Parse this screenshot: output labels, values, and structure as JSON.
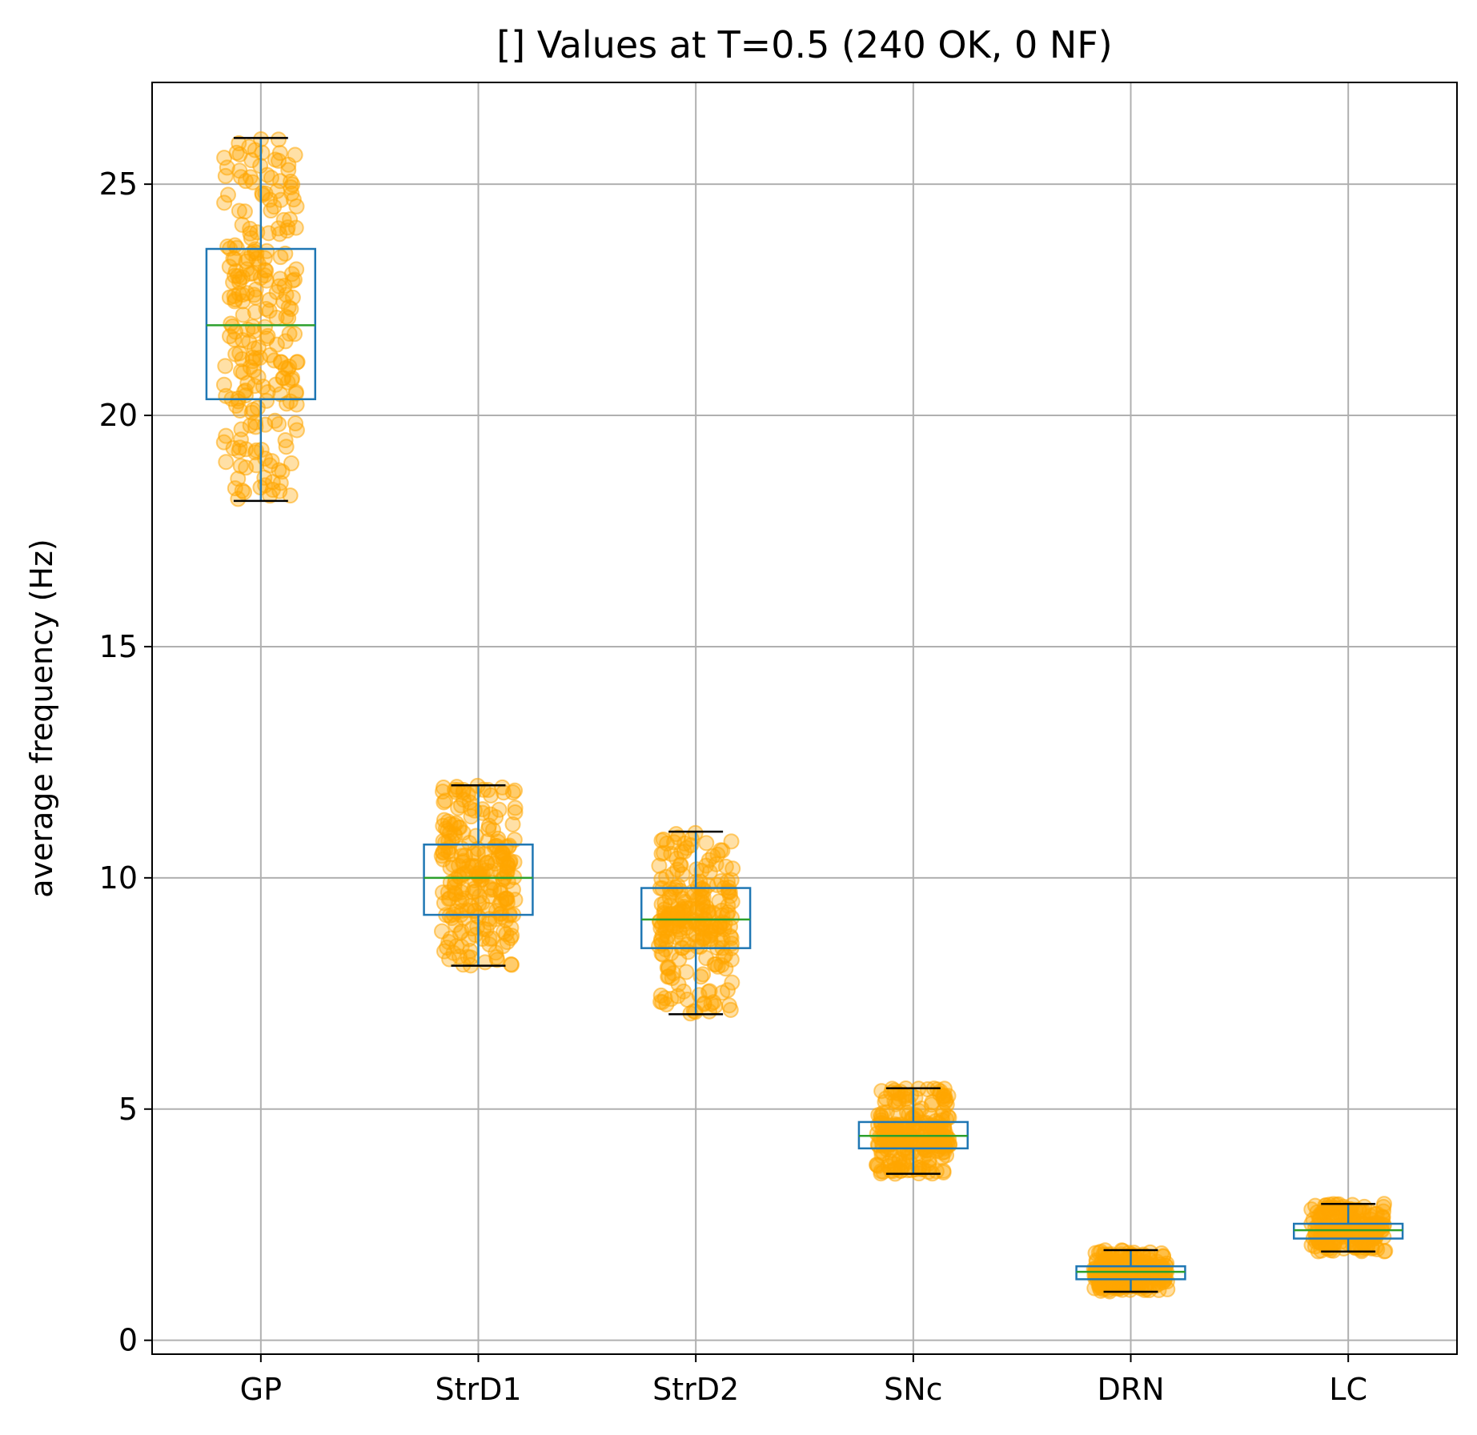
{
  "chart_data": {
    "type": "box",
    "title": "[] Values at T=0.5 (240 OK, 0 NF)",
    "xlabel": "",
    "ylabel": "average frequency (Hz)",
    "ylim": [
      -0.3,
      27.2
    ],
    "yticks": [
      0,
      5,
      10,
      15,
      20,
      25
    ],
    "grid": true,
    "categories": [
      "GP",
      "StrD1",
      "StrD2",
      "SNc",
      "DRN",
      "LC"
    ],
    "boxes": [
      {
        "label": "GP",
        "whislo": 18.15,
        "q1": 20.35,
        "med": 21.95,
        "q3": 23.6,
        "whishi": 26.0
      },
      {
        "label": "StrD1",
        "whislo": 8.1,
        "q1": 9.2,
        "med": 10.0,
        "q3": 10.72,
        "whishi": 12.0
      },
      {
        "label": "StrD2",
        "whislo": 7.05,
        "q1": 8.48,
        "med": 9.1,
        "q3": 9.78,
        "whishi": 11.0
      },
      {
        "label": "SNc",
        "whislo": 3.6,
        "q1": 4.15,
        "med": 4.42,
        "q3": 4.72,
        "whishi": 5.45
      },
      {
        "label": "DRN",
        "whislo": 1.05,
        "q1": 1.32,
        "med": 1.48,
        "q3": 1.6,
        "whishi": 1.95
      },
      {
        "label": "LC",
        "whislo": 1.92,
        "q1": 2.2,
        "med": 2.38,
        "q3": 2.52,
        "whishi": 2.95
      }
    ],
    "points_per_box": 240,
    "colors": {
      "box": "#1f77b4",
      "median": "#2ca02c",
      "whisker": "#1f77b4",
      "cap": "#000000",
      "points": "#ffa500",
      "grid": "#b0b0b0"
    }
  }
}
